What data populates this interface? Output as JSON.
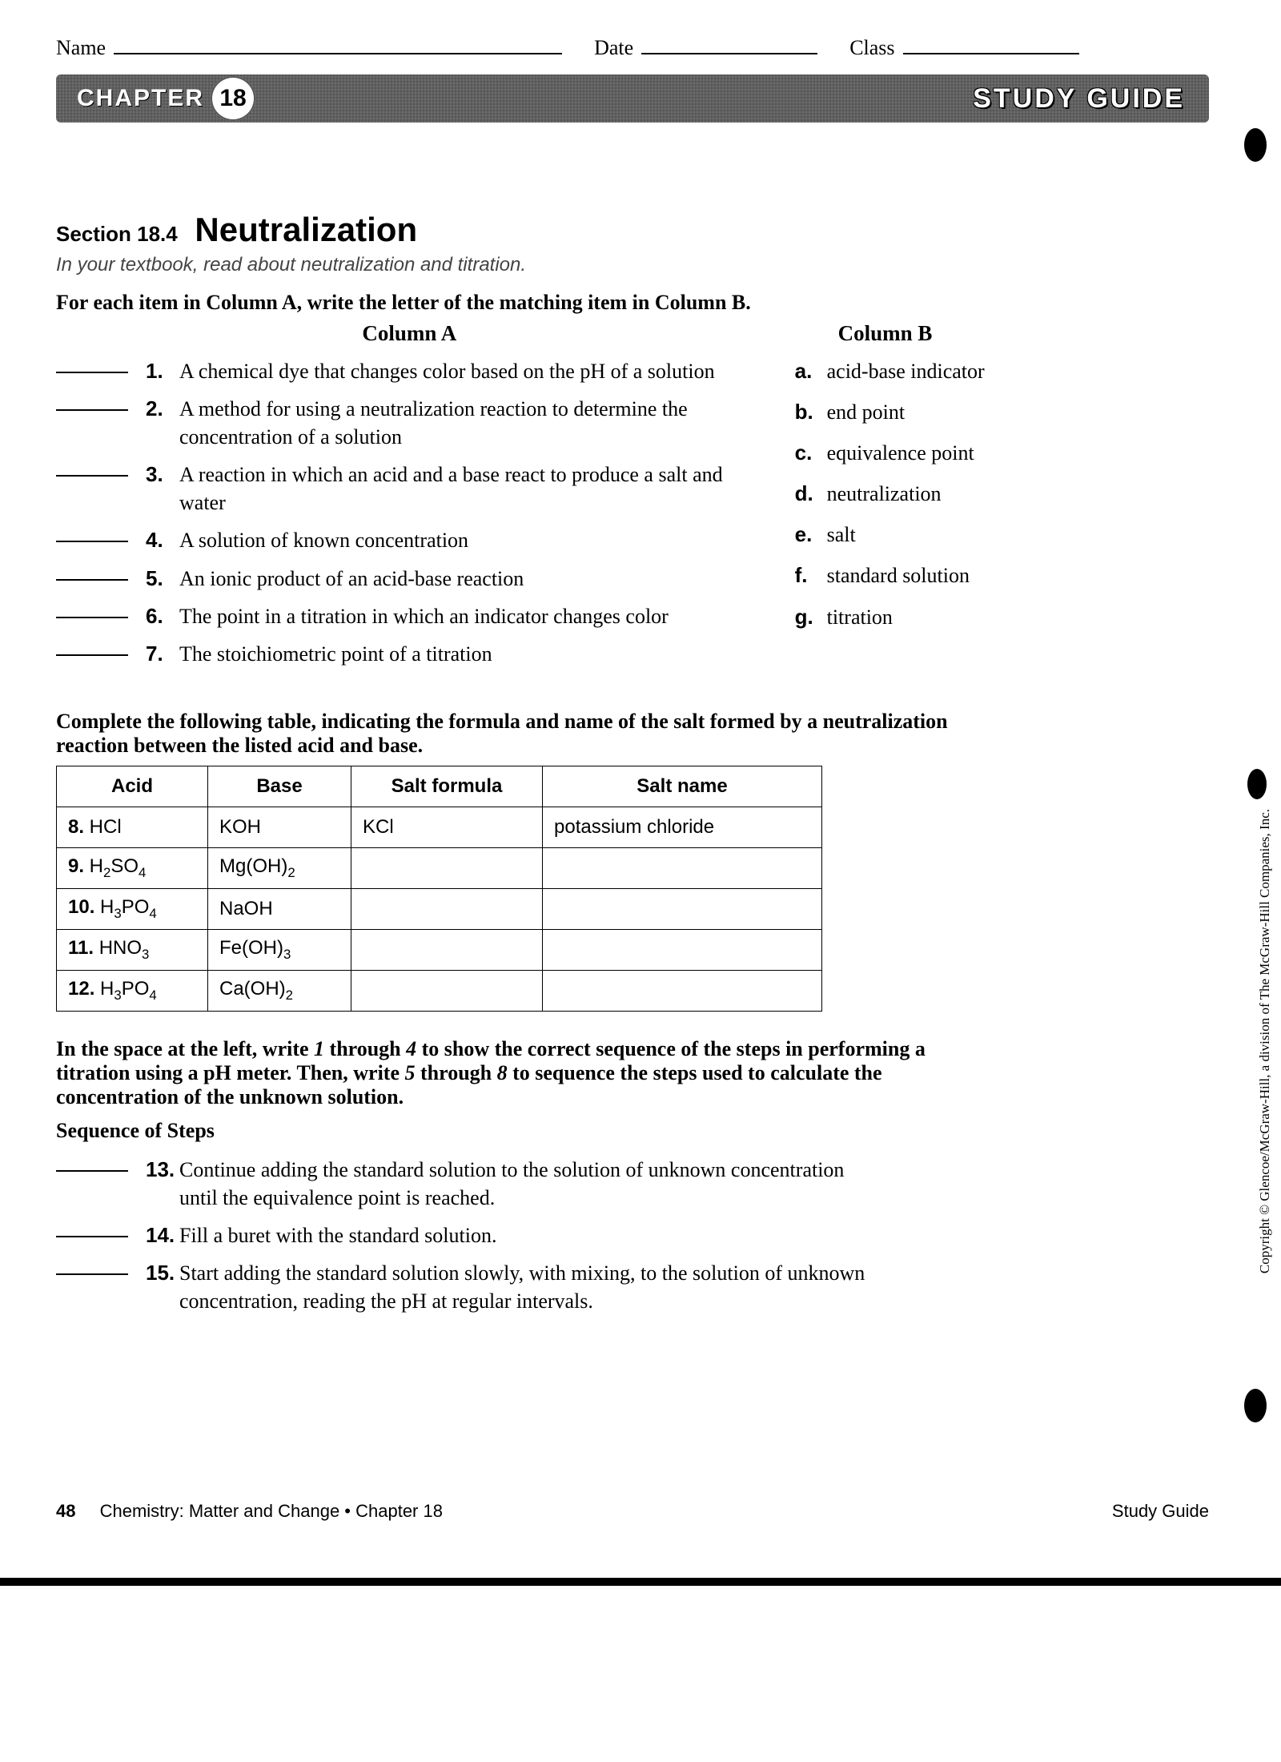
{
  "header": {
    "name": "Name",
    "date": "Date",
    "class": "Class"
  },
  "banner": {
    "chapter": "CHAPTER",
    "number": "18",
    "right": "STUDY GUIDE"
  },
  "section": {
    "label": "Section 18.4",
    "title": "Neutralization",
    "instr": "In your textbook, read about neutralization and titration."
  },
  "matching": {
    "instr": "For each item in Column A, write the letter of the matching item in Column B.",
    "headA": "Column A",
    "headB": "Column B",
    "items": [
      {
        "n": "1.",
        "t": "A chemical dye that changes color based on the pH of a solution"
      },
      {
        "n": "2.",
        "t": "A method for using a neutralization reaction to determine the concentration of a solution"
      },
      {
        "n": "3.",
        "t": "A reaction in which an acid and a base react to produce a salt and water"
      },
      {
        "n": "4.",
        "t": "A solution of known concentration"
      },
      {
        "n": "5.",
        "t": "An ionic product of an acid-base reaction"
      },
      {
        "n": "6.",
        "t": "The point in a titration in which an indicator changes color"
      },
      {
        "n": "7.",
        "t": "The stoichiometric point of a titration"
      }
    ],
    "choices": [
      {
        "l": "a.",
        "t": "acid-base indicator"
      },
      {
        "l": "b.",
        "t": "end point"
      },
      {
        "l": "c.",
        "t": "equivalence point"
      },
      {
        "l": "d.",
        "t": "neutralization"
      },
      {
        "l": "e.",
        "t": "salt"
      },
      {
        "l": "f.",
        "t": "standard solution"
      },
      {
        "l": "g.",
        "t": "titration"
      }
    ]
  },
  "tableSection": {
    "instr": "Complete the following table, indicating the formula and name of the salt formed by a neutralization reaction between the listed acid and base.",
    "headers": [
      "Acid",
      "Base",
      "Salt formula",
      "Salt name"
    ],
    "rows": [
      {
        "n": "8.",
        "acid": "HCl",
        "base": "KOH",
        "formula": "KCl",
        "name": "potassium chloride"
      },
      {
        "n": "9.",
        "acid": "H<sub>2</sub>SO<sub>4</sub>",
        "base": "Mg(OH)<sub>2</sub>",
        "formula": "",
        "name": ""
      },
      {
        "n": "10.",
        "acid": "H<sub>3</sub>PO<sub>4</sub>",
        "base": "NaOH",
        "formula": "",
        "name": ""
      },
      {
        "n": "11.",
        "acid": "HNO<sub>3</sub>",
        "base": "Fe(OH)<sub>3</sub>",
        "formula": "",
        "name": ""
      },
      {
        "n": "12.",
        "acid": "H<sub>3</sub>PO<sub>4</sub>",
        "base": "Ca(OH)<sub>2</sub>",
        "formula": "",
        "name": ""
      }
    ]
  },
  "sequence": {
    "instr": "In the space at the left, write 1 through 4 to show the correct sequence of the steps in performing a titration using a pH meter. Then, write 5 through 8 to sequence the steps used to calculate the concentration of the unknown solution.",
    "sub": "Sequence of Steps",
    "items": [
      {
        "n": "13.",
        "t": "Continue adding the standard solution to the solution of unknown concentration until the equivalence point is reached."
      },
      {
        "n": "14.",
        "t": "Fill a buret with the standard solution."
      },
      {
        "n": "15.",
        "t": "Start adding the standard solution slowly, with mixing, to the solution of unknown concentration, reading the pH at regular intervals."
      }
    ]
  },
  "footer": {
    "page": "48",
    "left": "Chemistry: Matter and Change • Chapter 18",
    "right": "Study Guide"
  },
  "copyright": "Copyright © Glencoe/McGraw-Hill, a division of The McGraw-Hill Companies, Inc."
}
